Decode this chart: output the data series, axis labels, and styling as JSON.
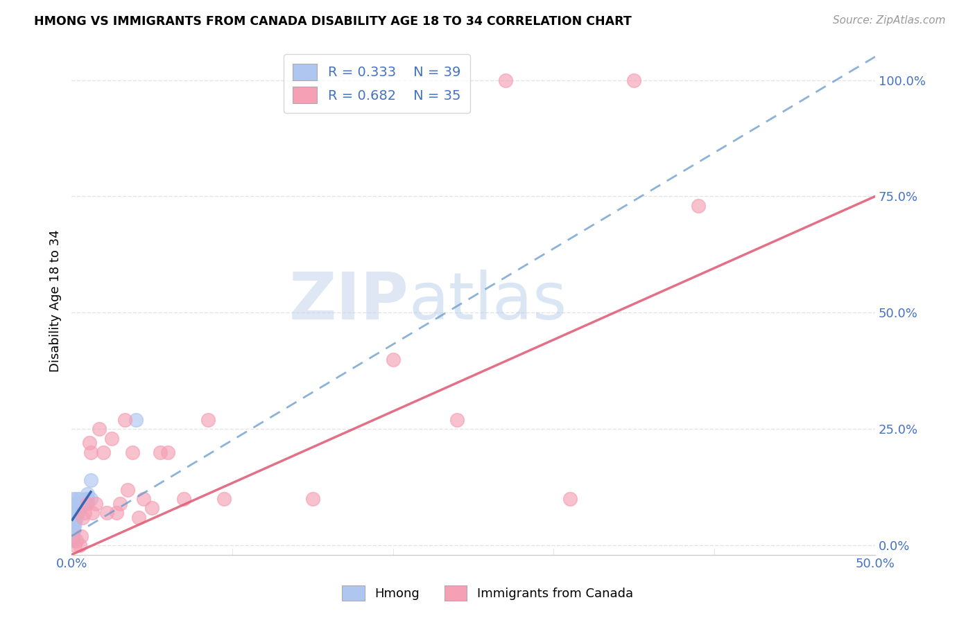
{
  "title": "HMONG VS IMMIGRANTS FROM CANADA DISABILITY AGE 18 TO 34 CORRELATION CHART",
  "source": "Source: ZipAtlas.com",
  "ylabel": "Disability Age 18 to 34",
  "xlim": [
    0,
    0.5
  ],
  "ylim": [
    -0.02,
    1.07
  ],
  "yticks_right": [
    0.0,
    0.25,
    0.5,
    0.75,
    1.0
  ],
  "ytick_labels_right": [
    "0.0%",
    "25.0%",
    "50.0%",
    "75.0%",
    "100.0%"
  ],
  "legend_r1": "R = 0.333",
  "legend_n1": "N = 39",
  "legend_r2": "R = 0.682",
  "legend_n2": "N = 35",
  "hmong_color": "#aec6f0",
  "canada_color": "#f5a0b5",
  "hmong_line_color": "#6699cc",
  "canada_line_color": "#e0607a",
  "background_color": "#ffffff",
  "grid_color": "#dddddd",
  "hmong_x": [
    0.0005,
    0.0005,
    0.0005,
    0.0005,
    0.0005,
    0.0008,
    0.0008,
    0.001,
    0.001,
    0.001,
    0.001,
    0.001,
    0.0012,
    0.0012,
    0.0015,
    0.0015,
    0.002,
    0.002,
    0.002,
    0.003,
    0.003,
    0.003,
    0.004,
    0.004,
    0.005,
    0.005,
    0.006,
    0.007,
    0.008,
    0.009,
    0.01,
    0.01,
    0.012,
    0.012,
    0.04,
    0.001,
    0.001,
    0.001,
    0.001
  ],
  "hmong_y": [
    0.01,
    0.02,
    0.03,
    0.05,
    0.07,
    0.03,
    0.05,
    0.02,
    0.04,
    0.06,
    0.08,
    0.1,
    0.03,
    0.05,
    0.04,
    0.07,
    0.05,
    0.07,
    0.09,
    0.06,
    0.08,
    0.1,
    0.07,
    0.09,
    0.08,
    0.1,
    0.09,
    0.09,
    0.09,
    0.1,
    0.1,
    0.11,
    0.1,
    0.14,
    0.27,
    0.01,
    0.02,
    0.03,
    0.04
  ],
  "canada_x": [
    0.002,
    0.003,
    0.005,
    0.006,
    0.007,
    0.008,
    0.01,
    0.011,
    0.012,
    0.013,
    0.015,
    0.017,
    0.02,
    0.022,
    0.025,
    0.028,
    0.03,
    0.033,
    0.035,
    0.038,
    0.042,
    0.045,
    0.05,
    0.055,
    0.06,
    0.07,
    0.085,
    0.095,
    0.15,
    0.2,
    0.24,
    0.27,
    0.31,
    0.35,
    0.39
  ],
  "canada_y": [
    0.0,
    0.01,
    0.0,
    0.02,
    0.06,
    0.07,
    0.09,
    0.22,
    0.2,
    0.07,
    0.09,
    0.25,
    0.2,
    0.07,
    0.23,
    0.07,
    0.09,
    0.27,
    0.12,
    0.2,
    0.06,
    0.1,
    0.08,
    0.2,
    0.2,
    0.1,
    0.27,
    0.1,
    0.1,
    0.4,
    0.27,
    1.0,
    0.1,
    1.0,
    0.73
  ],
  "hmong_line_x0": 0.0,
  "hmong_line_y0": 0.02,
  "hmong_line_x1": 0.5,
  "hmong_line_y1": 1.05,
  "canada_line_x0": 0.0,
  "canada_line_y0": -0.02,
  "canada_line_x1": 0.5,
  "canada_line_y1": 0.75
}
